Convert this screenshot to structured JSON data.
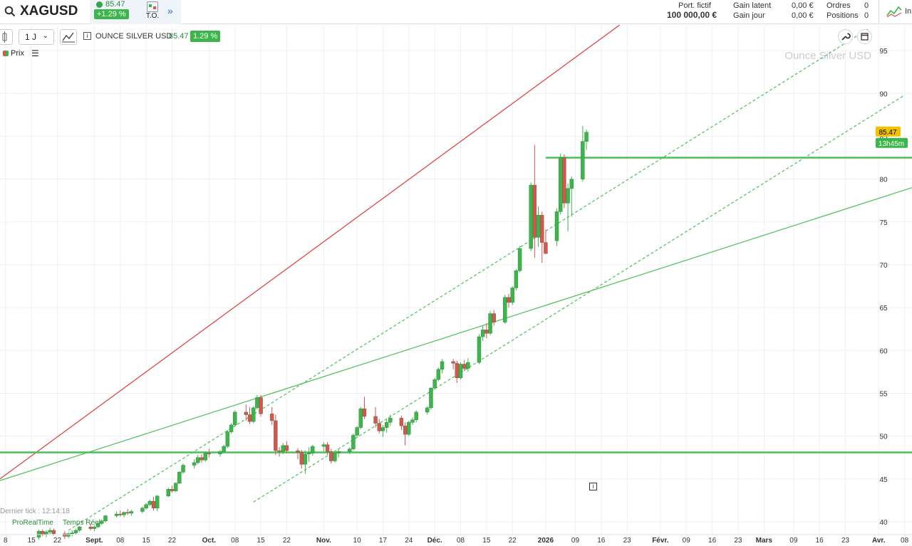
{
  "header": {
    "symbol": "XAGUSD",
    "price": "85.47",
    "change": "+1.29 %",
    "to_label": "T.O.",
    "more": "»",
    "portfolio_label": "Port. fictif",
    "portfolio_value": "100 000,00 €",
    "unrealized_label": "Gain latent",
    "unrealized_value": "0,00 €",
    "daily_label": "Gain jour",
    "daily_value": "0,00 €",
    "orders_label": "Ordres",
    "orders_value": "0",
    "positions_label": "Positions",
    "positions_value": "0",
    "right_label": "In"
  },
  "toolbar": {
    "timeframe": "1 J",
    "instrument": "OUNCE SILVER USD",
    "instrument_price": "85.47",
    "instrument_change": "1.29 %",
    "price_legend": "Prix"
  },
  "overlay": {
    "watermark": "Ounce Silver USD",
    "last_tick": "Dernier tick : 12:14:18",
    "brand": "ProRealTime",
    "realtime": "Temps Réel",
    "info": "i",
    "price_tag": "85.47",
    "timer_tag": "13h45m"
  },
  "colors": {
    "up": "#3cb54a",
    "down": "#d9534f",
    "red_line": "#e23b3b",
    "green_line": "#4cc057",
    "grid": "#eef0f2",
    "price_tag_bg": "#f2c200",
    "timer_tag_bg": "#3cb54a"
  },
  "chart_data": {
    "type": "candlestick",
    "symbol": "OUNCE SILVER USD",
    "ylim": [
      38.5,
      98
    ],
    "y_ticks": [
      40,
      45,
      50,
      55,
      60,
      65,
      70,
      75,
      80,
      85,
      90,
      95
    ],
    "x_labels": [
      "8",
      "15",
      "22",
      "Sept.",
      "08",
      "15",
      "22",
      "Oct.",
      "08",
      "15",
      "22",
      "Nov.",
      "10",
      "17",
      "24",
      "Déc.",
      "08",
      "15",
      "22",
      "2026",
      "09",
      "16",
      "23",
      "Févr.",
      "09",
      "16",
      "23",
      "Mars",
      "09",
      "16",
      "23",
      "Avr.",
      "08"
    ],
    "x_label_days": [
      -7,
      0,
      7,
      17,
      24,
      31,
      38,
      48,
      55,
      62,
      69,
      79,
      88,
      95,
      102,
      109,
      116,
      123,
      130,
      139,
      147,
      154,
      161,
      170,
      177,
      184,
      191,
      198,
      206,
      213,
      220,
      229,
      236
    ],
    "x_range_days": [
      -8.5,
      238
    ],
    "bold_labels": [
      "Sept.",
      "Oct.",
      "Nov.",
      "Déc.",
      "2026",
      "Févr.",
      "Mars",
      "Avr."
    ],
    "candles": [
      {
        "d": 2,
        "o": 38.2,
        "h": 39.1,
        "l": 37.9,
        "c": 38.9
      },
      {
        "d": 3,
        "o": 38.9,
        "h": 39.1,
        "l": 38.3,
        "c": 38.5
      },
      {
        "d": 4,
        "o": 38.5,
        "h": 39.0,
        "l": 38.2,
        "c": 38.8
      },
      {
        "d": 5,
        "o": 38.8,
        "h": 39.3,
        "l": 38.5,
        "c": 39.0
      },
      {
        "d": 6,
        "o": 39.0,
        "h": 39.2,
        "l": 38.4,
        "c": 38.6
      },
      {
        "d": 9,
        "o": 38.6,
        "h": 38.9,
        "l": 38.0,
        "c": 38.3
      },
      {
        "d": 10,
        "o": 38.3,
        "h": 38.8,
        "l": 38.1,
        "c": 38.6
      },
      {
        "d": 11,
        "o": 38.6,
        "h": 39.0,
        "l": 38.3,
        "c": 38.7
      },
      {
        "d": 12,
        "o": 38.7,
        "h": 39.2,
        "l": 38.5,
        "c": 39.0
      },
      {
        "d": 13,
        "o": 39.0,
        "h": 39.5,
        "l": 38.8,
        "c": 39.4
      },
      {
        "d": 16,
        "o": 39.4,
        "h": 39.8,
        "l": 39.0,
        "c": 39.2
      },
      {
        "d": 17,
        "o": 39.2,
        "h": 39.6,
        "l": 38.9,
        "c": 39.4
      },
      {
        "d": 18,
        "o": 39.4,
        "h": 40.0,
        "l": 39.3,
        "c": 39.8
      },
      {
        "d": 19,
        "o": 39.8,
        "h": 40.3,
        "l": 39.6,
        "c": 40.1
      },
      {
        "d": 20,
        "o": 40.1,
        "h": 40.8,
        "l": 39.9,
        "c": 40.7
      },
      {
        "d": 23,
        "o": 40.7,
        "h": 41.2,
        "l": 40.5,
        "c": 40.9
      },
      {
        "d": 24,
        "o": 40.9,
        "h": 41.3,
        "l": 40.6,
        "c": 40.8
      },
      {
        "d": 25,
        "o": 40.8,
        "h": 41.2,
        "l": 40.5,
        "c": 41.1
      },
      {
        "d": 26,
        "o": 41.1,
        "h": 41.5,
        "l": 40.8,
        "c": 41.0
      },
      {
        "d": 27,
        "o": 41.0,
        "h": 41.4,
        "l": 40.7,
        "c": 41.2
      },
      {
        "d": 30,
        "o": 41.2,
        "h": 41.8,
        "l": 41.0,
        "c": 41.6
      },
      {
        "d": 31,
        "o": 41.6,
        "h": 42.2,
        "l": 41.4,
        "c": 42.0
      },
      {
        "d": 32,
        "o": 42.0,
        "h": 42.6,
        "l": 41.8,
        "c": 42.4
      },
      {
        "d": 33,
        "o": 42.4,
        "h": 42.9,
        "l": 41.3,
        "c": 41.6
      },
      {
        "d": 34,
        "o": 41.6,
        "h": 43.1,
        "l": 41.2,
        "c": 43.0
      },
      {
        "d": 37,
        "o": 43.0,
        "h": 44.0,
        "l": 42.9,
        "c": 43.8
      },
      {
        "d": 38,
        "o": 43.8,
        "h": 44.2,
        "l": 43.4,
        "c": 43.6
      },
      {
        "d": 39,
        "o": 43.6,
        "h": 44.6,
        "l": 43.5,
        "c": 44.5
      },
      {
        "d": 40,
        "o": 44.5,
        "h": 45.9,
        "l": 44.4,
        "c": 45.8
      },
      {
        "d": 41,
        "o": 45.8,
        "h": 46.8,
        "l": 45.6,
        "c": 46.6
      },
      {
        "d": 44,
        "o": 46.6,
        "h": 47.3,
        "l": 46.2,
        "c": 46.9
      },
      {
        "d": 45,
        "o": 46.9,
        "h": 47.8,
        "l": 46.7,
        "c": 47.5
      },
      {
        "d": 46,
        "o": 47.5,
        "h": 47.9,
        "l": 46.9,
        "c": 47.2
      },
      {
        "d": 47,
        "o": 47.2,
        "h": 48.2,
        "l": 47.0,
        "c": 48.0
      },
      {
        "d": 48,
        "o": 48.0,
        "h": 48.5,
        "l": 47.5,
        "c": 47.9
      },
      {
        "d": 51,
        "o": 47.9,
        "h": 48.4,
        "l": 47.6,
        "c": 48.2
      },
      {
        "d": 52,
        "o": 48.2,
        "h": 49.0,
        "l": 48.0,
        "c": 48.8
      },
      {
        "d": 53,
        "o": 48.8,
        "h": 50.7,
        "l": 48.6,
        "c": 50.5
      },
      {
        "d": 54,
        "o": 50.5,
        "h": 51.5,
        "l": 50.3,
        "c": 51.3
      },
      {
        "d": 55,
        "o": 51.3,
        "h": 53.0,
        "l": 51.1,
        "c": 52.8
      },
      {
        "d": 58,
        "o": 52.8,
        "h": 53.7,
        "l": 51.8,
        "c": 52.5
      },
      {
        "d": 59,
        "o": 52.5,
        "h": 53.4,
        "l": 51.4,
        "c": 51.7
      },
      {
        "d": 60,
        "o": 51.7,
        "h": 53.5,
        "l": 51.5,
        "c": 53.3
      },
      {
        "d": 61,
        "o": 53.3,
        "h": 54.8,
        "l": 53.1,
        "c": 54.5
      },
      {
        "d": 62,
        "o": 54.5,
        "h": 54.8,
        "l": 52.3,
        "c": 52.6
      },
      {
        "d": 65,
        "o": 52.6,
        "h": 53.4,
        "l": 51.3,
        "c": 51.8
      },
      {
        "d": 66,
        "o": 51.8,
        "h": 52.5,
        "l": 47.8,
        "c": 48.3
      },
      {
        "d": 67,
        "o": 48.3,
        "h": 48.7,
        "l": 47.6,
        "c": 48.2
      },
      {
        "d": 68,
        "o": 48.2,
        "h": 49.2,
        "l": 47.9,
        "c": 48.9
      },
      {
        "d": 69,
        "o": 48.9,
        "h": 49.4,
        "l": 48.0,
        "c": 48.3
      },
      {
        "d": 72,
        "o": 48.3,
        "h": 48.6,
        "l": 47.3,
        "c": 48.1
      },
      {
        "d": 73,
        "o": 48.1,
        "h": 48.4,
        "l": 46.2,
        "c": 46.7
      },
      {
        "d": 74,
        "o": 46.7,
        "h": 48.3,
        "l": 45.6,
        "c": 47.9
      },
      {
        "d": 75,
        "o": 47.9,
        "h": 48.7,
        "l": 47.0,
        "c": 48.0
      },
      {
        "d": 76,
        "o": 48.0,
        "h": 49.0,
        "l": 47.7,
        "c": 48.8
      },
      {
        "d": 79,
        "o": 48.8,
        "h": 49.3,
        "l": 48.2,
        "c": 49.0
      },
      {
        "d": 80,
        "o": 49.0,
        "h": 49.3,
        "l": 47.8,
        "c": 48.2
      },
      {
        "d": 81,
        "o": 48.2,
        "h": 48.5,
        "l": 46.8,
        "c": 47.1
      },
      {
        "d": 82,
        "o": 47.1,
        "h": 48.2,
        "l": 46.9,
        "c": 48.0
      },
      {
        "d": 83,
        "o": 48.0,
        "h": 48.5,
        "l": 47.5,
        "c": 48.2
      },
      {
        "d": 86,
        "o": 48.2,
        "h": 48.7,
        "l": 47.9,
        "c": 48.5
      },
      {
        "d": 87,
        "o": 48.5,
        "h": 50.3,
        "l": 48.3,
        "c": 50.1
      },
      {
        "d": 88,
        "o": 50.1,
        "h": 51.2,
        "l": 49.9,
        "c": 51.0
      },
      {
        "d": 89,
        "o": 51.0,
        "h": 53.4,
        "l": 50.8,
        "c": 53.2
      },
      {
        "d": 90,
        "o": 53.2,
        "h": 54.6,
        "l": 52.0,
        "c": 52.3
      },
      {
        "d": 93,
        "o": 52.3,
        "h": 53.4,
        "l": 51.0,
        "c": 51.5
      },
      {
        "d": 94,
        "o": 51.5,
        "h": 52.0,
        "l": 50.3,
        "c": 50.6
      },
      {
        "d": 95,
        "o": 50.6,
        "h": 51.3,
        "l": 49.9,
        "c": 51.0
      },
      {
        "d": 96,
        "o": 51.0,
        "h": 51.9,
        "l": 50.4,
        "c": 51.6
      },
      {
        "d": 97,
        "o": 51.6,
        "h": 52.5,
        "l": 51.2,
        "c": 52.1
      },
      {
        "d": 100,
        "o": 52.1,
        "h": 52.4,
        "l": 50.7,
        "c": 51.2
      },
      {
        "d": 101,
        "o": 51.2,
        "h": 51.6,
        "l": 48.9,
        "c": 50.2
      },
      {
        "d": 102,
        "o": 50.2,
        "h": 51.8,
        "l": 50.0,
        "c": 51.6
      },
      {
        "d": 103,
        "o": 51.6,
        "h": 52.2,
        "l": 51.3,
        "c": 51.9
      },
      {
        "d": 104,
        "o": 51.9,
        "h": 53.0,
        "l": 51.6,
        "c": 52.8
      },
      {
        "d": 107,
        "o": 52.8,
        "h": 53.5,
        "l": 52.5,
        "c": 53.3
      },
      {
        "d": 108,
        "o": 53.3,
        "h": 55.7,
        "l": 53.1,
        "c": 55.6
      },
      {
        "d": 109,
        "o": 55.6,
        "h": 56.8,
        "l": 55.4,
        "c": 56.6
      },
      {
        "d": 110,
        "o": 56.6,
        "h": 58.0,
        "l": 56.4,
        "c": 57.8
      },
      {
        "d": 111,
        "o": 57.8,
        "h": 59.0,
        "l": 57.3,
        "c": 58.7
      },
      {
        "d": 114,
        "o": 58.7,
        "h": 59.0,
        "l": 57.8,
        "c": 58.5
      },
      {
        "d": 115,
        "o": 58.5,
        "h": 58.8,
        "l": 56.2,
        "c": 56.8
      },
      {
        "d": 116,
        "o": 56.8,
        "h": 58.6,
        "l": 56.6,
        "c": 58.4
      },
      {
        "d": 117,
        "o": 58.4,
        "h": 58.9,
        "l": 57.6,
        "c": 57.9
      },
      {
        "d": 118,
        "o": 57.9,
        "h": 59.1,
        "l": 57.5,
        "c": 58.6
      },
      {
        "d": 121,
        "o": 58.6,
        "h": 61.9,
        "l": 58.4,
        "c": 61.6
      },
      {
        "d": 122,
        "o": 61.6,
        "h": 62.9,
        "l": 61.1,
        "c": 62.4
      },
      {
        "d": 123,
        "o": 62.4,
        "h": 63.2,
        "l": 61.4,
        "c": 62.0
      },
      {
        "d": 124,
        "o": 62.0,
        "h": 64.6,
        "l": 61.8,
        "c": 64.3
      },
      {
        "d": 125,
        "o": 64.3,
        "h": 64.7,
        "l": 62.9,
        "c": 63.3
      },
      {
        "d": 128,
        "o": 63.3,
        "h": 66.5,
        "l": 63.1,
        "c": 66.2
      },
      {
        "d": 129,
        "o": 66.2,
        "h": 66.6,
        "l": 65.0,
        "c": 65.6
      },
      {
        "d": 130,
        "o": 65.6,
        "h": 67.5,
        "l": 65.3,
        "c": 67.3
      },
      {
        "d": 131,
        "o": 67.3,
        "h": 69.5,
        "l": 67.0,
        "c": 69.3
      },
      {
        "d": 132,
        "o": 69.3,
        "h": 72.2,
        "l": 69.1,
        "c": 71.9
      },
      {
        "d": 135,
        "o": 71.9,
        "h": 79.6,
        "l": 71.6,
        "c": 79.3
      },
      {
        "d": 136,
        "o": 79.3,
        "h": 84.0,
        "l": 70.8,
        "c": 73.2
      },
      {
        "d": 137,
        "o": 73.2,
        "h": 76.8,
        "l": 72.1,
        "c": 75.8
      },
      {
        "d": 138,
        "o": 75.8,
        "h": 76.2,
        "l": 70.2,
        "c": 72.6
      },
      {
        "d": 139,
        "o": 72.6,
        "h": 74.1,
        "l": 71.4,
        "c": 71.3
      },
      {
        "d": 142,
        "o": 72.8,
        "h": 76.6,
        "l": 72.2,
        "c": 76.2
      },
      {
        "d": 143,
        "o": 76.2,
        "h": 83.0,
        "l": 75.9,
        "c": 82.5
      },
      {
        "d": 144,
        "o": 82.5,
        "h": 82.9,
        "l": 76.6,
        "c": 77.2
      },
      {
        "d": 145,
        "o": 77.2,
        "h": 79.5,
        "l": 73.9,
        "c": 78.9
      },
      {
        "d": 146,
        "o": 78.9,
        "h": 80.3,
        "l": 75.6,
        "c": 80.0
      },
      {
        "d": 149,
        "o": 80.0,
        "h": 86.2,
        "l": 79.7,
        "c": 84.4
      },
      {
        "d": 150,
        "o": 84.4,
        "h": 85.8,
        "l": 83.4,
        "c": 85.47
      }
    ],
    "lines": [
      {
        "name": "red-trendline",
        "style": "solid",
        "color": "red",
        "x1": -8.5,
        "y1": 45.0,
        "x2": 159,
        "y2": 98.0
      },
      {
        "name": "green-support-trendline",
        "style": "solid",
        "color": "green",
        "x1": -8.5,
        "y1": 44.8,
        "x2": 238,
        "y2": 79.0
      },
      {
        "name": "upper-dashed-channel",
        "style": "dashed",
        "color": "green",
        "x1": 10,
        "y1": 39.0,
        "x2": 226,
        "y2": 97.5
      },
      {
        "name": "lower-dashed-channel",
        "style": "dashed",
        "color": "green",
        "x1": 60,
        "y1": 42.3,
        "x2": 236,
        "y2": 89.8
      },
      {
        "name": "support-level-48",
        "style": "solid-thick",
        "color": "green",
        "x1": -8.5,
        "y1": 48.1,
        "x2": 238,
        "y2": 48.1
      },
      {
        "name": "resistance-level-82",
        "style": "solid-thick",
        "color": "green",
        "x1": 139,
        "y1": 82.5,
        "x2": 238,
        "y2": 82.5
      }
    ]
  }
}
